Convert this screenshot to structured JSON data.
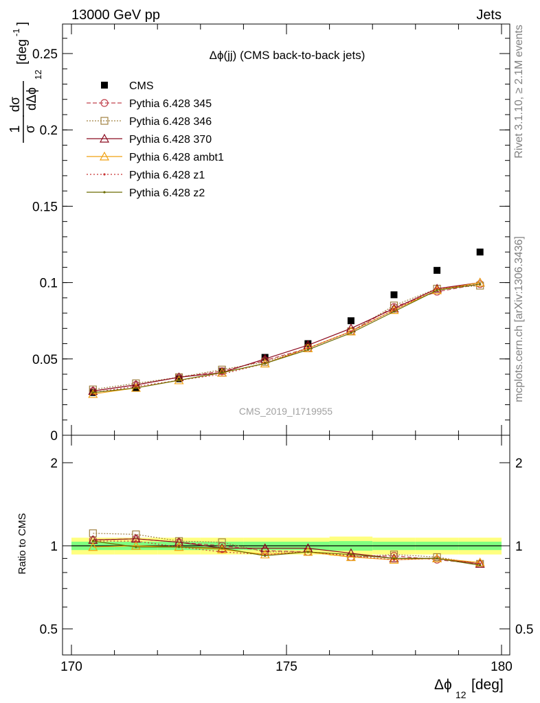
{
  "header": {
    "left": "13000 GeV pp",
    "right": "Jets"
  },
  "side_text": {
    "rivet": "Rivet 3.1.10, ≥ 2.1M events",
    "source": "mcplots.cern.ch [arXiv:1306.3436]"
  },
  "watermark": "CMS_2019_I1719955",
  "colors": {
    "cms": "#000000",
    "p345": "#c0404c",
    "p346": "#a08040",
    "p370": "#8b0a1e",
    "ambt1": "#f0a010",
    "z1": "#c83232",
    "z2": "#6b6b00",
    "band_inner": "#80ff80",
    "band_outer": "#ffff80"
  },
  "chart_data": [
    {
      "type": "line",
      "panel": "main",
      "title": "Δϕ(jj) (CMS back-to-back jets)",
      "ylabel_num": "1",
      "ylabel_dnum": "dσ",
      "ylabel_den": "σ",
      "ylabel_dden": "dΔϕ",
      "ylabel_sub": "12",
      "ylabel_unit": "[deg",
      "ylabel_sup": "-1",
      "ylabel_close": "]",
      "xlim": [
        170,
        180
      ],
      "ylim": [
        0,
        0.27
      ],
      "yticks": [
        0,
        0.05,
        0.1,
        0.15,
        0.2,
        0.25
      ],
      "ytick_labels": [
        "0",
        "0.05",
        "0.1",
        "0.15",
        "0.2",
        "0.25"
      ],
      "x": [
        170.5,
        171.5,
        172.5,
        173.5,
        174.5,
        175.5,
        176.5,
        177.5,
        178.5,
        179.5
      ],
      "series": [
        {
          "name": "CMS",
          "values": [
            0.028,
            0.031,
            0.037,
            0.042,
            0.051,
            0.06,
            0.075,
            0.092,
            0.108,
            0.12
          ]
        },
        {
          "name": "Pythia 6.428 345",
          "values": [
            0.029,
            0.033,
            0.038,
            0.042,
            0.049,
            0.057,
            0.068,
            0.084,
            0.094,
            0.099
          ]
        },
        {
          "name": "Pythia 6.428 346",
          "values": [
            0.03,
            0.034,
            0.038,
            0.043,
            0.048,
            0.057,
            0.068,
            0.085,
            0.096,
            0.098
          ]
        },
        {
          "name": "Pythia 6.428 370",
          "values": [
            0.029,
            0.033,
            0.038,
            0.041,
            0.05,
            0.059,
            0.07,
            0.083,
            0.096,
            0.1
          ]
        },
        {
          "name": "Pythia 6.428 ambt1",
          "values": [
            0.027,
            0.031,
            0.036,
            0.041,
            0.047,
            0.057,
            0.068,
            0.082,
            0.095,
            0.1
          ]
        },
        {
          "name": "Pythia 6.428 z1",
          "values": [
            0.028,
            0.032,
            0.036,
            0.04,
            0.047,
            0.057,
            0.068,
            0.082,
            0.096,
            0.099
          ]
        },
        {
          "name": "Pythia 6.428 z2",
          "values": [
            0.028,
            0.031,
            0.036,
            0.041,
            0.047,
            0.056,
            0.067,
            0.081,
            0.095,
            0.099
          ]
        }
      ]
    },
    {
      "type": "line",
      "panel": "ratio",
      "ylabel": "Ratio to CMS",
      "xlabel": "Δϕ",
      "xlabel_sub": "12",
      "xlabel_unit": "[deg]",
      "xlim": [
        170,
        180
      ],
      "ylim": [
        0.35,
        2.3
      ],
      "xticks": [
        170,
        175,
        180
      ],
      "xtick_labels": [
        "170",
        "175",
        "180"
      ],
      "yticks": [
        0.5,
        1,
        2
      ],
      "ytick_labels": [
        "0.5",
        "1",
        "2"
      ],
      "x": [
        170.5,
        171.5,
        172.5,
        173.5,
        174.5,
        175.5,
        176.5,
        177.5,
        178.5,
        179.5
      ],
      "band_inner": [
        0.035,
        0.035,
        0.035,
        0.035,
        0.035,
        0.035,
        0.04,
        0.035,
        0.035,
        0.035
      ],
      "band_outer": [
        0.07,
        0.07,
        0.07,
        0.07,
        0.07,
        0.07,
        0.08,
        0.07,
        0.07,
        0.07
      ],
      "series": [
        {
          "name": "Pythia 6.428 345",
          "values": [
            1.05,
            1.06,
            1.03,
            1.0,
            0.96,
            0.95,
            0.91,
            0.92,
            0.89,
            0.86
          ]
        },
        {
          "name": "Pythia 6.428 346",
          "values": [
            1.11,
            1.1,
            1.04,
            1.03,
            0.95,
            0.95,
            0.91,
            0.93,
            0.91,
            0.86
          ]
        },
        {
          "name": "Pythia 6.428 370",
          "values": [
            1.05,
            1.06,
            1.03,
            0.98,
            0.98,
            0.98,
            0.94,
            0.9,
            0.9,
            0.86
          ]
        },
        {
          "name": "Pythia 6.428 ambt1",
          "values": [
            0.99,
            1.0,
            0.99,
            0.97,
            0.93,
            0.95,
            0.91,
            0.89,
            0.9,
            0.87
          ]
        },
        {
          "name": "Pythia 6.428 z1",
          "values": [
            1.04,
            1.04,
            0.99,
            0.95,
            0.93,
            0.95,
            0.92,
            0.89,
            0.9,
            0.86
          ]
        },
        {
          "name": "Pythia 6.428 z2",
          "values": [
            1.04,
            0.99,
            0.99,
            0.98,
            0.92,
            0.95,
            0.93,
            0.9,
            0.9,
            0.85
          ]
        }
      ]
    }
  ]
}
